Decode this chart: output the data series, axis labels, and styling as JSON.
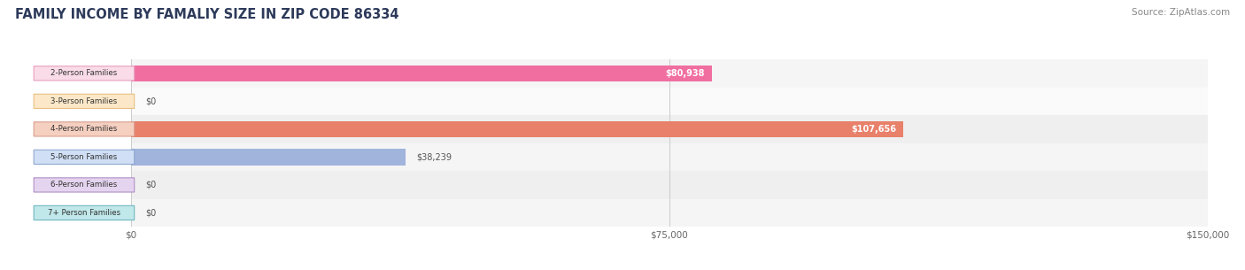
{
  "title": "FAMILY INCOME BY FAMALIY SIZE IN ZIP CODE 86334",
  "source": "Source: ZipAtlas.com",
  "categories": [
    "2-Person Families",
    "3-Person Families",
    "4-Person Families",
    "5-Person Families",
    "6-Person Families",
    "7+ Person Families"
  ],
  "values": [
    80938,
    0,
    107656,
    38239,
    0,
    0
  ],
  "bar_colors": [
    "#f06fa0",
    "#f5c98a",
    "#e8806a",
    "#a0b4dc",
    "#c4a8d8",
    "#80cfd0"
  ],
  "label_bg_colors": [
    "#f9dce8",
    "#fce8c8",
    "#f5cfc0",
    "#d0dff5",
    "#e4d4ef",
    "#c0e8ea"
  ],
  "label_border_colors": [
    "#e8a0c0",
    "#e8c080",
    "#d8a090",
    "#90a8d0",
    "#b090c8",
    "#70b8c0"
  ],
  "value_labels": [
    "$80,938",
    "$0",
    "$107,656",
    "$38,239",
    "$0",
    "$0"
  ],
  "value_label_inside": [
    true,
    false,
    true,
    false,
    false,
    false
  ],
  "xlim": [
    0,
    150000
  ],
  "xtick_labels": [
    "$0",
    "$75,000",
    "$150,000"
  ],
  "xtick_values": [
    0,
    75000,
    150000
  ],
  "title_color": "#2d3a5a",
  "title_fontsize": 10.5,
  "source_fontsize": 7.5,
  "bar_height": 0.58,
  "background_color": "#ffffff",
  "row_bg_colors": [
    "#f5f5f5",
    "#fafafa",
    "#efefef",
    "#f5f5f5",
    "#efefef",
    "#f5f5f5"
  ]
}
